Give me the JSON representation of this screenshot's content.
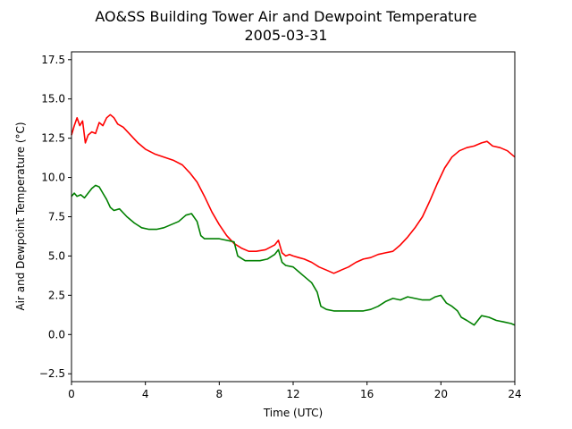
{
  "chart_data": {
    "type": "line",
    "title": "AO&SS Building Tower Air and Dewpoint Temperature",
    "subtitle": "2005-03-31",
    "xlabel": "Time (UTC)",
    "ylabel": "Air and Dewpoint Temperature (°C)",
    "xlim": [
      0,
      24
    ],
    "ylim": [
      -3,
      18
    ],
    "xticks": [
      0,
      4,
      8,
      12,
      16,
      20,
      24
    ],
    "yticks": [
      -2.5,
      0.0,
      2.5,
      5.0,
      7.5,
      10.0,
      12.5,
      15.0,
      17.5
    ],
    "grid": false,
    "legend": "none",
    "series": [
      {
        "color": "#ff0000",
        "x": [
          0,
          0.15,
          0.3,
          0.45,
          0.6,
          0.75,
          0.9,
          1.1,
          1.3,
          1.5,
          1.7,
          1.9,
          2.1,
          2.3,
          2.5,
          2.8,
          3.2,
          3.6,
          4.0,
          4.5,
          5.0,
          5.5,
          6.0,
          6.4,
          6.8,
          7.2,
          7.6,
          8.0,
          8.4,
          8.8,
          9.2,
          9.6,
          10.0,
          10.5,
          11.0,
          11.2,
          11.4,
          11.6,
          11.8,
          12.0,
          12.3,
          12.6,
          13.0,
          13.4,
          13.8,
          14.2,
          14.6,
          15.0,
          15.4,
          15.8,
          16.2,
          16.6,
          17.0,
          17.4,
          17.8,
          18.2,
          18.6,
          19.0,
          19.4,
          19.8,
          20.2,
          20.6,
          21.0,
          21.4,
          21.8,
          22.2,
          22.5,
          22.8,
          23.2,
          23.6,
          24.0
        ],
        "y": [
          12.7,
          13.3,
          13.8,
          13.3,
          13.6,
          12.2,
          12.7,
          12.9,
          12.8,
          13.5,
          13.3,
          13.8,
          14.0,
          13.8,
          13.4,
          13.2,
          12.7,
          12.2,
          11.8,
          11.5,
          11.3,
          11.1,
          10.8,
          10.3,
          9.7,
          8.8,
          7.8,
          7.0,
          6.3,
          5.8,
          5.5,
          5.3,
          5.3,
          5.4,
          5.7,
          6.0,
          5.2,
          5.0,
          5.1,
          5.0,
          4.9,
          4.8,
          4.6,
          4.3,
          4.1,
          3.9,
          4.1,
          4.3,
          4.6,
          4.8,
          4.9,
          5.1,
          5.2,
          5.3,
          5.7,
          6.2,
          6.8,
          7.5,
          8.5,
          9.6,
          10.6,
          11.3,
          11.7,
          11.9,
          12.0,
          12.2,
          12.3,
          12.0,
          11.9,
          11.7,
          11.3
        ]
      },
      {
        "color": "#008000",
        "x": [
          0,
          0.15,
          0.3,
          0.5,
          0.7,
          0.9,
          1.1,
          1.3,
          1.5,
          1.7,
          1.9,
          2.1,
          2.3,
          2.6,
          3.0,
          3.4,
          3.8,
          4.2,
          4.6,
          5.0,
          5.4,
          5.8,
          6.2,
          6.5,
          6.8,
          7.0,
          7.2,
          7.6,
          8.0,
          8.4,
          8.8,
          9.0,
          9.4,
          9.8,
          10.2,
          10.6,
          11.0,
          11.2,
          11.4,
          11.6,
          12.0,
          12.3,
          12.6,
          13.0,
          13.3,
          13.5,
          13.8,
          14.2,
          14.6,
          15.0,
          15.4,
          15.8,
          16.2,
          16.6,
          17.0,
          17.4,
          17.8,
          18.2,
          18.6,
          19.0,
          19.4,
          19.7,
          20.0,
          20.3,
          20.6,
          20.9,
          21.1,
          21.4,
          21.8,
          22.2,
          22.6,
          23.0,
          23.4,
          23.8,
          24.0
        ],
        "y": [
          8.8,
          9.0,
          8.8,
          8.9,
          8.7,
          9.0,
          9.3,
          9.5,
          9.4,
          9.0,
          8.6,
          8.1,
          7.9,
          8.0,
          7.5,
          7.1,
          6.8,
          6.7,
          6.7,
          6.8,
          7.0,
          7.2,
          7.6,
          7.7,
          7.2,
          6.3,
          6.1,
          6.1,
          6.1,
          6.0,
          5.9,
          5.0,
          4.7,
          4.7,
          4.7,
          4.8,
          5.1,
          5.4,
          4.6,
          4.4,
          4.3,
          4.0,
          3.7,
          3.3,
          2.7,
          1.8,
          1.6,
          1.5,
          1.5,
          1.5,
          1.5,
          1.5,
          1.6,
          1.8,
          2.1,
          2.3,
          2.2,
          2.4,
          2.3,
          2.2,
          2.2,
          2.4,
          2.5,
          2.0,
          1.8,
          1.5,
          1.1,
          0.9,
          0.6,
          1.2,
          1.1,
          0.9,
          0.8,
          0.7,
          0.6
        ]
      }
    ]
  }
}
